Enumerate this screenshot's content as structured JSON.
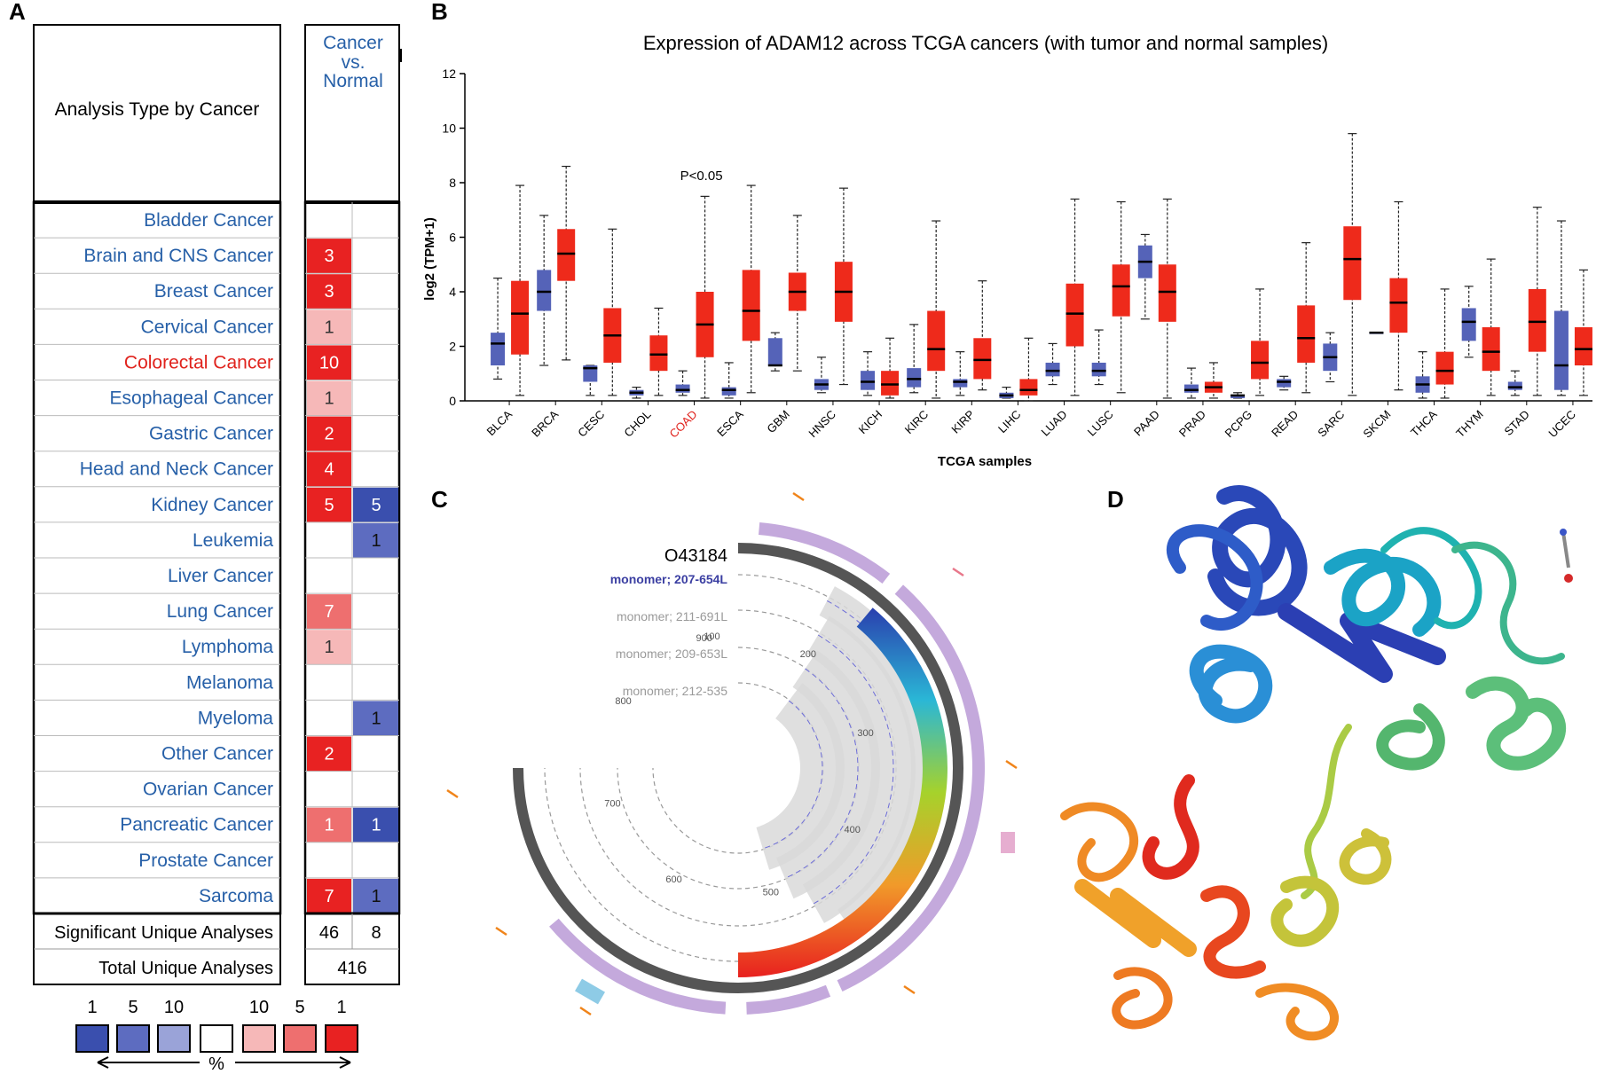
{
  "panels": {
    "a": "A",
    "b": "B",
    "c": "C",
    "d": "D"
  },
  "oncomine": {
    "header_label": "Analysis Type by Cancer",
    "column_header": [
      "Cancer",
      "vs.",
      "Normal"
    ],
    "rows": [
      {
        "name": "Bladder Cancer",
        "up": null,
        "down": null,
        "up_shade": null,
        "down_shade": null,
        "highlight": false
      },
      {
        "name": "Brain and CNS Cancer",
        "up": "3",
        "down": null,
        "up_shade": "strong",
        "down_shade": null,
        "highlight": false
      },
      {
        "name": "Breast Cancer",
        "up": "3",
        "down": null,
        "up_shade": "strong",
        "down_shade": null,
        "highlight": false
      },
      {
        "name": "Cervical Cancer",
        "up": "1",
        "down": null,
        "up_shade": "light",
        "down_shade": null,
        "highlight": false
      },
      {
        "name": "Colorectal Cancer",
        "up": "10",
        "down": null,
        "up_shade": "strong",
        "down_shade": null,
        "highlight": true
      },
      {
        "name": "Esophageal Cancer",
        "up": "1",
        "down": null,
        "up_shade": "light",
        "down_shade": null,
        "highlight": false
      },
      {
        "name": "Gastric Cancer",
        "up": "2",
        "down": null,
        "up_shade": "strong",
        "down_shade": null,
        "highlight": false
      },
      {
        "name": "Head and Neck Cancer",
        "up": "4",
        "down": null,
        "up_shade": "strong",
        "down_shade": null,
        "highlight": false
      },
      {
        "name": "Kidney Cancer",
        "up": "5",
        "down": "5",
        "up_shade": "strong",
        "down_shade": "strong",
        "highlight": false
      },
      {
        "name": "Leukemia",
        "up": null,
        "down": "1",
        "up_shade": null,
        "down_shade": "medium",
        "highlight": false
      },
      {
        "name": "Liver Cancer",
        "up": null,
        "down": null,
        "up_shade": null,
        "down_shade": null,
        "highlight": false
      },
      {
        "name": "Lung Cancer",
        "up": "7",
        "down": null,
        "up_shade": "medium",
        "down_shade": null,
        "highlight": false
      },
      {
        "name": "Lymphoma",
        "up": "1",
        "down": null,
        "up_shade": "light",
        "down_shade": null,
        "highlight": false
      },
      {
        "name": "Melanoma",
        "up": null,
        "down": null,
        "up_shade": null,
        "down_shade": null,
        "highlight": false
      },
      {
        "name": "Myeloma",
        "up": null,
        "down": "1",
        "up_shade": null,
        "down_shade": "medium",
        "highlight": false
      },
      {
        "name": "Other Cancer",
        "up": "2",
        "down": null,
        "up_shade": "strong",
        "down_shade": null,
        "highlight": false
      },
      {
        "name": "Ovarian Cancer",
        "up": null,
        "down": null,
        "up_shade": null,
        "down_shade": null,
        "highlight": false
      },
      {
        "name": "Pancreatic Cancer",
        "up": "1",
        "down": "1",
        "up_shade": "medium",
        "down_shade": "strong",
        "highlight": false
      },
      {
        "name": "Prostate Cancer",
        "up": null,
        "down": null,
        "up_shade": null,
        "down_shade": null,
        "highlight": false
      },
      {
        "name": "Sarcoma",
        "up": "7",
        "down": "1",
        "up_shade": "strong",
        "down_shade": "medium",
        "highlight": false
      }
    ],
    "significant_label": "Significant Unique Analyses",
    "significant_up": "46",
    "significant_down": "8",
    "total_label": "Total Unique Analyses",
    "total_value": "416",
    "legend_labels": [
      "1",
      "5",
      "10",
      "10",
      "5",
      "1"
    ],
    "legend_colors": [
      "#3a4fae",
      "#5d6cc0",
      "#9aa3d8",
      "#ffffff",
      "#f6b8b8",
      "#ee6f6f",
      "#e82222"
    ],
    "legend_unit": "%",
    "colors": {
      "up_strong": "#e82222",
      "up_medium": "#ee6f6f",
      "up_light": "#f6b8b8",
      "down_strong": "#3a4fae",
      "down_medium": "#5d6cc0",
      "label_blue": "#2760a8",
      "highlight_red": "#e0231d"
    }
  },
  "chart_data": {
    "type": "box",
    "title": "Expression of ADAM12 across TCGA cancers (with tumor and normal samples)",
    "xlabel": "TCGA samples",
    "ylabel": "log2 (TPM+1)",
    "ylim": [
      0,
      12
    ],
    "yticks": [
      0,
      2,
      4,
      6,
      8,
      10,
      12
    ],
    "annotation": {
      "text": "P<0.05",
      "category": "COAD"
    },
    "highlight_category": "COAD",
    "colors": {
      "tumor": "#ee2a1b",
      "normal": "#5563b8",
      "highlight": "#e0231d"
    },
    "categories": [
      "BLCA",
      "BRCA",
      "CESC",
      "CHOL",
      "COAD",
      "ESCA",
      "GBM",
      "HNSC",
      "KICH",
      "KIRC",
      "KIRP",
      "LIHC",
      "LUAD",
      "LUSC",
      "PAAD",
      "PRAD",
      "PCPG",
      "READ",
      "SARC",
      "SKCM",
      "THCA",
      "THYM",
      "STAD",
      "UCEC"
    ],
    "normal": [
      [
        0.8,
        1.3,
        2.1,
        2.5,
        4.5
      ],
      [
        1.3,
        3.3,
        4.0,
        4.8,
        6.8
      ],
      [
        0.2,
        0.7,
        1.2,
        1.3,
        1.3
      ],
      [
        0.1,
        0.2,
        0.3,
        0.4,
        0.5
      ],
      [
        0.2,
        0.3,
        0.4,
        0.6,
        1.1
      ],
      [
        0.1,
        0.2,
        0.4,
        0.5,
        1.4
      ],
      [
        1.1,
        1.3,
        1.3,
        2.3,
        2.5
      ],
      [
        0.3,
        0.4,
        0.6,
        0.8,
        1.6
      ],
      [
        0.2,
        0.4,
        0.7,
        1.1,
        1.8
      ],
      [
        0.3,
        0.5,
        0.8,
        1.2,
        2.8
      ],
      [
        0.2,
        0.5,
        0.7,
        0.8,
        1.8
      ],
      [
        0.1,
        0.1,
        0.2,
        0.3,
        0.5
      ],
      [
        0.6,
        0.9,
        1.1,
        1.4,
        2.1
      ],
      [
        0.6,
        0.9,
        1.1,
        1.4,
        2.6
      ],
      [
        3.0,
        4.5,
        5.1,
        5.7,
        6.1
      ],
      [
        0.1,
        0.3,
        0.4,
        0.6,
        1.2
      ],
      [
        0.1,
        0.1,
        0.2,
        0.2,
        0.3
      ],
      [
        0.4,
        0.5,
        0.7,
        0.8,
        0.9
      ],
      [
        0.7,
        1.1,
        1.6,
        2.1,
        2.5
      ],
      [
        2.5,
        2.5,
        2.5,
        2.5,
        2.5
      ],
      [
        0.1,
        0.3,
        0.6,
        0.9,
        1.8
      ],
      [
        1.6,
        2.2,
        2.9,
        3.4,
        4.2
      ],
      [
        0.2,
        0.4,
        0.5,
        0.7,
        1.1
      ],
      [
        0.2,
        0.4,
        1.3,
        3.3,
        6.6
      ]
    ],
    "tumor": [
      [
        0.2,
        1.7,
        3.2,
        4.4,
        7.9
      ],
      [
        1.5,
        4.4,
        5.4,
        6.3,
        8.6
      ],
      [
        0.2,
        1.4,
        2.4,
        3.4,
        6.3
      ],
      [
        0.2,
        1.1,
        1.7,
        2.4,
        3.4
      ],
      [
        0.1,
        1.6,
        2.8,
        4.0,
        7.5
      ],
      [
        0.3,
        2.2,
        3.3,
        4.8,
        7.9
      ],
      [
        1.1,
        3.3,
        4.0,
        4.7,
        6.8
      ],
      [
        0.6,
        2.9,
        4.0,
        5.1,
        7.8
      ],
      [
        0.1,
        0.2,
        0.6,
        1.1,
        2.3
      ],
      [
        0.1,
        1.1,
        1.9,
        3.3,
        6.6
      ],
      [
        0.4,
        0.8,
        1.5,
        2.3,
        4.4
      ],
      [
        0.0,
        0.2,
        0.4,
        0.8,
        2.3
      ],
      [
        0.2,
        2.0,
        3.2,
        4.3,
        7.4
      ],
      [
        0.3,
        3.1,
        4.2,
        5.0,
        7.3
      ],
      [
        0.1,
        2.9,
        4.0,
        5.0,
        7.4
      ],
      [
        0.1,
        0.3,
        0.5,
        0.7,
        1.4
      ],
      [
        0.2,
        0.8,
        1.4,
        2.2,
        4.1
      ],
      [
        0.3,
        1.4,
        2.3,
        3.5,
        5.8
      ],
      [
        0.2,
        3.7,
        5.2,
        6.4,
        9.8
      ],
      [
        0.4,
        2.5,
        3.6,
        4.5,
        7.3
      ],
      [
        0.1,
        0.6,
        1.1,
        1.8,
        4.1
      ],
      [
        0.2,
        1.1,
        1.8,
        2.7,
        5.2
      ],
      [
        0.2,
        1.8,
        2.9,
        4.1,
        7.1
      ],
      [
        0.2,
        1.3,
        1.9,
        2.7,
        4.8
      ]
    ]
  },
  "circos": {
    "protein_id": "O43184",
    "tracks": [
      "monomer; 207-654L",
      "monomer; 211-691L",
      "monomer; 209-653L",
      "monomer; 212-535"
    ],
    "position_ticks": [
      "100",
      "200",
      "300",
      "400",
      "500",
      "600",
      "700",
      "800",
      "900"
    ]
  }
}
